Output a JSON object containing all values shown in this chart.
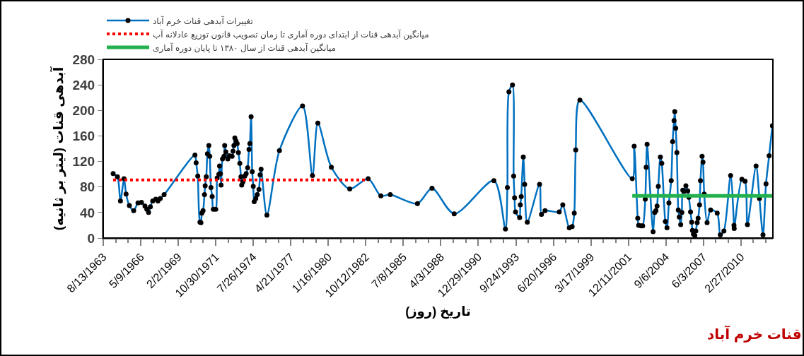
{
  "chart_data": {
    "type": "line",
    "ylabel": "آبدهی قنات (لیتر بر ثانیه)",
    "xlabel": "تاریخ (روز)",
    "annotations": [
      "قنات خرم آباد"
    ],
    "xlim": [
      "1963-08-13",
      "2012-06-28"
    ],
    "xticks": [
      {
        "value": "1963-08-13",
        "label": "8/13/1963"
      },
      {
        "value": "1966-05-09",
        "label": "5/9/1966"
      },
      {
        "value": "1969-02-02",
        "label": "2/2/1969"
      },
      {
        "value": "1971-10-30",
        "label": "10/30/1971"
      },
      {
        "value": "1974-07-26",
        "label": "7/26/1974"
      },
      {
        "value": "1977-04-21",
        "label": "4/21/1977"
      },
      {
        "value": "1980-01-16",
        "label": "1/16/1980"
      },
      {
        "value": "1982-10-12",
        "label": "10/12/1982"
      },
      {
        "value": "1985-07-08",
        "label": "7/8/1985"
      },
      {
        "value": "1988-04-03",
        "label": "4/3/1988"
      },
      {
        "value": "1990-12-29",
        "label": "12/29/1990"
      },
      {
        "value": "1993-09-24",
        "label": "9/24/1993"
      },
      {
        "value": "1996-06-20",
        "label": "6/20/1996"
      },
      {
        "value": "1999-03-17",
        "label": "3/17/1999"
      },
      {
        "value": "2001-12-11",
        "label": "12/11/2001"
      },
      {
        "value": "2004-09-06",
        "label": "9/6/2004"
      },
      {
        "value": "2007-06-03",
        "label": "6/3/2007"
      },
      {
        "value": "2010-02-27",
        "label": "2/27/2010"
      }
    ],
    "ylim": [
      0,
      280
    ],
    "yticks": [
      0,
      40,
      80,
      120,
      160,
      200,
      240,
      280
    ],
    "grid": false,
    "legend": "top",
    "series": [
      {
        "name": "تغییرات آبدهی قنات خرم آباد",
        "color": "#0070c0",
        "marker": "circle",
        "line_style": "solid",
        "x": [
          "1964-05-03",
          "1964-08-25",
          "1964-11-14",
          "1965-02-17",
          "1965-04-13",
          "1965-07-10",
          "1965-11-02",
          "1966-02-24",
          "1966-05-27",
          "1966-08-29",
          "1966-10-18",
          "1966-12-03",
          "1967-01-21",
          "1967-03-24",
          "1967-06-14",
          "1967-08-10",
          "1967-10-11",
          "1968-01-22",
          "1970-04-23",
          "1970-05-24",
          "1970-07-07",
          "1970-09-03",
          "1970-09-29",
          "1970-10-23",
          "1970-11-25",
          "1971-01-02",
          "1971-01-20",
          "1971-02-19",
          "1971-03-21",
          "1971-04-28",
          "1971-05-23",
          "1971-06-24",
          "1971-07-26",
          "1971-08-26",
          "1971-10-29",
          "1971-12-06",
          "1972-01-19",
          "1972-02-07",
          "1972-03-02",
          "1972-03-20",
          "1972-04-27",
          "1972-06-05",
          "1972-06-23",
          "1972-07-25",
          "1972-09-15",
          "1972-10-28",
          "1973-01-07",
          "1973-02-01",
          "1973-02-25",
          "1973-03-21",
          "1973-04-21",
          "1973-05-22",
          "1973-06-24",
          "1973-08-01",
          "1973-09-01",
          "1973-09-20",
          "1973-10-21",
          "1973-12-11",
          "1974-01-18",
          "1974-02-26",
          "1974-04-03",
          "1974-04-27",
          "1974-05-29",
          "1974-06-28",
          "1974-07-25",
          "1974-08-19",
          "1974-10-02",
          "1974-11-09",
          "1974-12-24",
          "1975-01-23",
          "1975-02-19",
          "1975-07-24",
          "1976-06-22",
          "1978-02-28",
          "1978-11-19",
          "1979-04-12",
          "1980-04-06",
          "1981-08-09",
          "1982-12-13",
          "1983-11-17",
          "1984-07-24",
          "1986-07-19",
          "1987-08-12",
          "1989-03-25",
          "1992-02-16",
          "1992-12-20",
          "1993-02-10",
          "1993-03-23",
          "1993-06-26",
          "1993-07-27",
          "1993-08-21",
          "1993-09-15",
          "1994-01-02",
          "1994-01-20",
          "1994-02-14",
          "1994-04-10",
          "1994-05-17",
          "1994-07-26",
          "1995-06-18",
          "1995-08-08",
          "1995-11-11",
          "1996-11-23",
          "1997-02-26",
          "1997-08-19",
          "1997-11-03",
          "1997-12-29",
          "1998-02-06",
          "1998-05-28",
          "2002-03-24",
          "2002-05-14",
          "2002-08-17",
          "2002-09-10",
          "2002-11-14",
          "2002-12-27",
          "2003-03-06",
          "2003-03-30",
          "2003-04-24",
          "2003-09-30",
          "2003-11-13",
          "2003-12-15",
          "2004-01-14",
          "2004-02-16",
          "2004-04-12",
          "2004-05-19",
          "2004-08-22",
          "2004-10-05",
          "2004-11-25",
          "2005-01-26",
          "2005-03-04",
          "2005-04-11",
          "2005-04-30",
          "2005-05-25",
          "2005-06-25",
          "2005-08-02",
          "2005-08-28",
          "2005-10-05",
          "2005-11-05",
          "2005-12-01",
          "2006-01-08",
          "2006-02-21",
          "2006-04-11",
          "2006-05-11",
          "2006-06-25",
          "2006-07-25",
          "2006-08-14",
          "2006-09-10",
          "2006-10-17",
          "2006-11-12",
          "2006-12-19",
          "2007-01-13",
          "2007-02-20",
          "2007-03-16",
          "2007-04-28",
          "2007-05-23",
          "2007-06-24",
          "2007-09-09",
          "2007-12-12",
          "2008-06-05",
          "2008-08-27",
          "2008-11-30",
          "2009-05-28",
          "2009-08-26",
          "2009-09-01",
          "2010-03-25",
          "2010-06-17",
          "2010-08-19",
          "2011-04-07",
          "2011-07-05",
          "2011-10-08",
          "2011-12-28",
          "2012-03-20",
          "2012-06-15"
        ],
        "values": [
          101,
          96,
          58,
          93,
          69,
          51,
          43,
          55,
          56,
          50,
          45,
          40,
          49,
          58,
          61,
          58,
          62,
          68,
          130,
          118,
          97,
          25,
          24,
          39,
          43,
          68,
          82,
          96,
          132,
          145,
          128,
          79,
          65,
          45,
          45,
          94,
          100,
          113,
          101,
          83,
          124,
          128,
          145,
          135,
          124,
          129,
          128,
          136,
          145,
          157,
          152,
          148,
          134,
          117,
          96,
          83,
          88,
          97,
          101,
          110,
          139,
          148,
          190,
          104,
          81,
          57,
          62,
          68,
          76,
          99,
          108,
          36,
          137,
          207,
          98,
          180,
          111,
          77,
          93,
          66,
          68,
          54,
          78,
          38,
          90,
          14,
          79,
          229,
          240,
          97,
          63,
          41,
          32,
          52,
          65,
          127,
          84,
          25,
          84,
          37,
          43,
          41,
          52,
          16,
          18,
          39,
          138,
          216,
          93,
          144,
          31,
          20,
          19,
          19,
          61,
          111,
          147,
          10,
          40,
          43,
          50,
          81,
          127,
          117,
          26,
          16,
          55,
          90,
          151,
          184,
          198,
          172,
          134,
          44,
          33,
          21,
          40,
          75,
          73,
          82,
          74,
          64,
          41,
          25,
          12,
          6,
          4,
          11,
          24,
          31,
          52,
          90,
          128,
          119,
          69,
          24,
          44,
          39,
          5,
          11,
          98,
          20,
          15,
          92,
          89,
          21,
          113,
          62,
          5,
          85,
          129,
          176
        ]
      },
      {
        "name": "میانگین آبدهی قنات از ابتدای دوره آماری تا زمان تصویب قانون توزیع عادلانه آب",
        "color": "#ff0000",
        "marker": "none",
        "line_style": "dotted",
        "x": [
          "1964-05-03",
          "1982-12-13"
        ],
        "values": [
          91,
          91
        ]
      },
      {
        "name": "میانگین آبدهی قنات از سال ۱۳۸۰ تا پایان دوره آماری",
        "color": "#22b14c",
        "marker": "none",
        "line_style": "solid",
        "x": [
          "2002-03-24",
          "2012-06-15"
        ],
        "values": [
          66,
          66
        ]
      }
    ]
  }
}
